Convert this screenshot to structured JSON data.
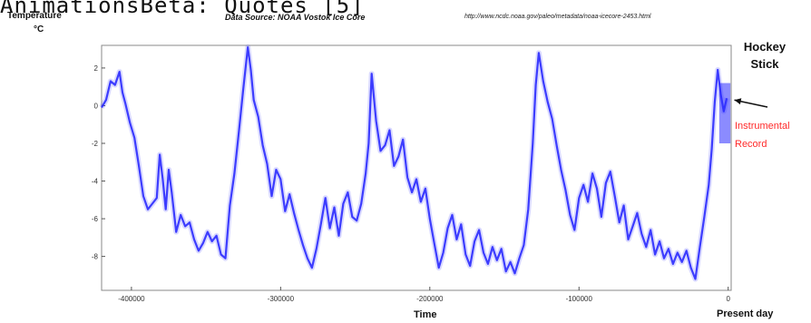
{
  "overlay_caption": "AnimationsBeta: Quotes [5]",
  "chart_data": {
    "type": "line",
    "source_text": "Data Source: NOAA Vostok Ice Core",
    "source_url": "http://www.ncdc.noaa.gov/paleo/metadata/noaa-icecore-2453.html",
    "ylabel": "Temperature",
    "yunit": "°C",
    "xlabel": "Time",
    "present_label": "Present day",
    "xlim": [
      -420000,
      2000
    ],
    "ylim": [
      -9.8,
      3.2
    ],
    "x_ticks": [
      -400000,
      -300000,
      -200000,
      -100000,
      0
    ],
    "x_tick_labels": [
      "-400000",
      "-300000",
      "-200000",
      "-100000",
      "0"
    ],
    "y_ticks": [
      2,
      0,
      -2,
      -4,
      -6,
      -8
    ],
    "y_tick_labels": [
      "2",
      "0",
      "-2",
      "-4",
      "-6",
      "-8"
    ],
    "grid": false,
    "line_color": "#2b2bff",
    "annotation": {
      "label": "Hockey Stick",
      "instrumental_label": "Instrumental Record",
      "instrumental_color": "#ff2a2a"
    },
    "series": [
      {
        "x": [
          -420000,
          -417000,
          -414000,
          -411000,
          -408000,
          -406000,
          -404000,
          -401000,
          -398000,
          -395000,
          -392000,
          -389000,
          -386000,
          -383000,
          -381000,
          -379000,
          -377000,
          -375000,
          -373000,
          -370000,
          -367000,
          -364000,
          -361000,
          -358000,
          -355000,
          -352000,
          -349000,
          -346000,
          -343000,
          -340000,
          -337000,
          -334000,
          -331000,
          -328000,
          -325000,
          -322000,
          -320000,
          -318000,
          -315000,
          -312000,
          -309000,
          -306000,
          -303000,
          -300000,
          -297000,
          -294000,
          -291000,
          -288000,
          -285000,
          -282000,
          -279000,
          -276000,
          -273000,
          -270000,
          -267000,
          -264000,
          -261000,
          -258000,
          -255000,
          -252000,
          -249000,
          -246000,
          -243000,
          -241000,
          -239000,
          -236000,
          -233000,
          -230000,
          -227000,
          -224000,
          -221000,
          -218000,
          -215000,
          -212000,
          -209000,
          -206000,
          -203000,
          -200000,
          -197000,
          -194000,
          -191000,
          -188000,
          -185000,
          -182000,
          -179000,
          -176000,
          -173000,
          -170000,
          -167000,
          -164000,
          -161000,
          -158000,
          -155000,
          -152000,
          -149000,
          -146000,
          -143000,
          -140000,
          -137000,
          -134000,
          -131000,
          -129000,
          -127000,
          -124000,
          -121000,
          -118000,
          -115000,
          -112000,
          -109000,
          -106000,
          -103000,
          -100000,
          -97000,
          -94000,
          -91000,
          -88000,
          -85000,
          -82000,
          -79000,
          -76000,
          -73000,
          -70000,
          -67000,
          -64000,
          -61000,
          -58000,
          -55000,
          -52000,
          -49000,
          -46000,
          -43000,
          -40000,
          -37000,
          -34000,
          -31000,
          -28000,
          -25000,
          -22000,
          -19000,
          -16000,
          -13000,
          -11000,
          -9000,
          -7000,
          -5000,
          -3000,
          -1000
        ],
        "y": [
          -0.1,
          0.3,
          1.3,
          1.1,
          1.8,
          0.7,
          0.1,
          -0.9,
          -1.7,
          -3.2,
          -4.8,
          -5.5,
          -5.2,
          -4.9,
          -2.6,
          -3.9,
          -5.5,
          -3.4,
          -4.6,
          -6.7,
          -5.8,
          -6.4,
          -6.2,
          -7.1,
          -7.7,
          -7.3,
          -6.7,
          -7.2,
          -6.9,
          -7.9,
          -8.1,
          -5.3,
          -3.6,
          -1.4,
          0.9,
          3.1,
          1.9,
          0.3,
          -0.6,
          -2.1,
          -3.1,
          -4.8,
          -3.4,
          -3.9,
          -5.6,
          -4.7,
          -5.7,
          -6.6,
          -7.4,
          -8.1,
          -8.6,
          -7.6,
          -6.3,
          -4.9,
          -6.5,
          -5.4,
          -6.9,
          -5.2,
          -4.6,
          -5.9,
          -6.1,
          -5.2,
          -3.6,
          -2.0,
          1.7,
          -0.8,
          -2.4,
          -2.1,
          -1.3,
          -3.2,
          -2.7,
          -1.8,
          -3.8,
          -4.6,
          -3.9,
          -5.1,
          -4.4,
          -6.0,
          -7.3,
          -8.6,
          -7.8,
          -6.5,
          -5.8,
          -7.1,
          -6.3,
          -7.9,
          -8.5,
          -7.2,
          -6.6,
          -7.8,
          -8.4,
          -7.5,
          -8.2,
          -7.6,
          -8.8,
          -8.3,
          -8.9,
          -8.1,
          -7.4,
          -5.5,
          -2.0,
          1.1,
          2.8,
          1.3,
          0.2,
          -0.7,
          -2.1,
          -3.4,
          -4.5,
          -5.8,
          -6.6,
          -4.9,
          -4.2,
          -5.1,
          -3.6,
          -4.4,
          -5.9,
          -4.1,
          -3.5,
          -4.8,
          -6.2,
          -5.3,
          -7.1,
          -6.4,
          -5.7,
          -6.8,
          -7.5,
          -6.6,
          -7.9,
          -7.2,
          -8.1,
          -7.6,
          -8.4,
          -7.8,
          -8.3,
          -7.7,
          -8.6,
          -9.2,
          -7.5,
          -5.9,
          -4.2,
          -2.3,
          0.2,
          1.9,
          0.6,
          -0.3,
          0.4
        ]
      }
    ]
  }
}
